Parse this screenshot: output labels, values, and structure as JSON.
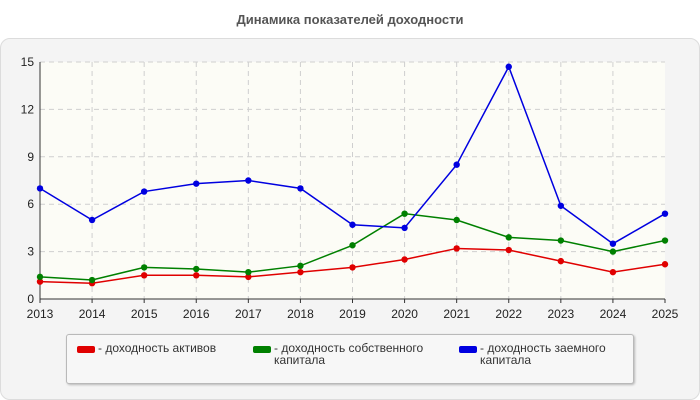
{
  "chart_data": {
    "type": "line",
    "title": "Динамика показателей доходности",
    "xlabel": "",
    "ylabel": "",
    "x": [
      "2013",
      "2014",
      "2015",
      "2016",
      "2017",
      "2018",
      "2019",
      "2020",
      "2021",
      "2022",
      "2023",
      "2024",
      "2025"
    ],
    "ylim": [
      0,
      15
    ],
    "yticks": [
      "0",
      "3",
      "6",
      "9",
      "12",
      "15"
    ],
    "grid": true,
    "legend_position": "bottom",
    "series": [
      {
        "name": "- доходность активов",
        "color": "#e00000",
        "values": [
          1.1,
          1.0,
          1.5,
          1.5,
          1.4,
          1.7,
          2.0,
          2.5,
          3.2,
          3.1,
          2.4,
          1.7,
          2.2
        ]
      },
      {
        "name": "- доходность собственного капитала",
        "color": "#008000",
        "values": [
          1.4,
          1.2,
          2.0,
          1.9,
          1.7,
          2.1,
          3.4,
          5.4,
          5.0,
          3.9,
          3.7,
          3.0,
          3.7
        ]
      },
      {
        "name": "- доходность заемного капитала",
        "color": "#0000e0",
        "values": [
          7.0,
          5.0,
          6.8,
          7.3,
          7.5,
          7.0,
          4.7,
          4.5,
          8.5,
          14.7,
          5.9,
          3.5,
          5.4
        ]
      }
    ]
  }
}
